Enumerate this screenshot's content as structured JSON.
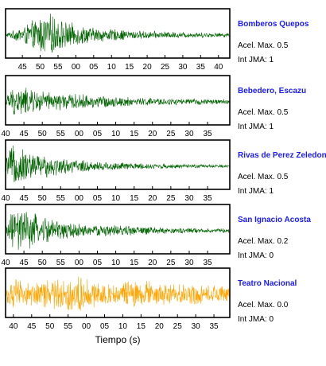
{
  "chart_data": [
    {
      "type": "line",
      "station": "Bomberos Quepos",
      "acel_text": "Acel. Max. 0.5",
      "jma_text": "Int JMA: 1",
      "acel_max": 0.5,
      "int_jma": 1,
      "color": "#006400",
      "amplitude_scale": 1.0,
      "x_tick_labels": [
        "45",
        "50",
        "55",
        "00",
        "05",
        "10",
        "15",
        "20",
        "25",
        "30",
        "35",
        "40"
      ],
      "first_tick_offset": 0.075,
      "tick_step": 0.0795,
      "onset_fraction": 0.03,
      "peak_fraction": 0.2,
      "decay": 0.25,
      "amplitude_series": [
        {
          "t": 0.0,
          "a": 0.08
        },
        {
          "t": 0.03,
          "a": 0.2
        },
        {
          "t": 0.1,
          "a": 0.55
        },
        {
          "t": 0.16,
          "a": 0.95
        },
        {
          "t": 0.2,
          "a": 1.0
        },
        {
          "t": 0.28,
          "a": 0.6
        },
        {
          "t": 0.4,
          "a": 0.35
        },
        {
          "t": 0.6,
          "a": 0.2
        },
        {
          "t": 0.8,
          "a": 0.14
        },
        {
          "t": 1.0,
          "a": 0.1
        }
      ]
    },
    {
      "type": "line",
      "station": "Bebedero, Escazu",
      "acel_text": "Acel. Max. 0.5",
      "jma_text": "Int JMA: 1",
      "acel_max": 0.5,
      "int_jma": 1,
      "color": "#006400",
      "amplitude_scale": 1.0,
      "x_tick_labels": [
        "40",
        "45",
        "50",
        "55",
        "00",
        "05",
        "10",
        "15",
        "20",
        "25",
        "30",
        "35"
      ],
      "first_tick_offset": 0.0,
      "tick_step": 0.0819,
      "amplitude_series": [
        {
          "t": 0.0,
          "a": 0.15
        },
        {
          "t": 0.02,
          "a": 0.6
        },
        {
          "t": 0.06,
          "a": 0.75
        },
        {
          "t": 0.12,
          "a": 0.6
        },
        {
          "t": 0.2,
          "a": 0.45
        },
        {
          "t": 0.35,
          "a": 0.35
        },
        {
          "t": 0.55,
          "a": 0.22
        },
        {
          "t": 0.8,
          "a": 0.15
        },
        {
          "t": 1.0,
          "a": 0.12
        }
      ]
    },
    {
      "type": "line",
      "station": "Rivas de Perez Zeledon",
      "acel_text": "Acel. Max. 0.5",
      "jma_text": "Int JMA: 1",
      "acel_max": 0.5,
      "int_jma": 1,
      "color": "#006400",
      "amplitude_scale": 1.0,
      "x_tick_labels": [
        "40",
        "45",
        "50",
        "55",
        "00",
        "05",
        "10",
        "15",
        "20",
        "25",
        "30",
        "35"
      ],
      "first_tick_offset": 0.0,
      "tick_step": 0.0819,
      "amplitude_series": [
        {
          "t": 0.0,
          "a": 0.3
        },
        {
          "t": 0.02,
          "a": 1.0
        },
        {
          "t": 0.08,
          "a": 0.85
        },
        {
          "t": 0.15,
          "a": 0.6
        },
        {
          "t": 0.25,
          "a": 0.4
        },
        {
          "t": 0.4,
          "a": 0.25
        },
        {
          "t": 0.6,
          "a": 0.15
        },
        {
          "t": 0.8,
          "a": 0.1
        },
        {
          "t": 1.0,
          "a": 0.07
        }
      ]
    },
    {
      "type": "line",
      "station": "San Ignacio Acosta",
      "acel_text": "Acel. Max. 0.2",
      "jma_text": "Int JMA: 0",
      "acel_max": 0.2,
      "int_jma": 0,
      "color": "#006400",
      "amplitude_scale": 1.0,
      "x_tick_labels": [
        "40",
        "45",
        "50",
        "55",
        "00",
        "05",
        "10",
        "15",
        "20",
        "25",
        "30",
        "35"
      ],
      "first_tick_offset": 0.0,
      "tick_step": 0.0819,
      "amplitude_series": [
        {
          "t": 0.0,
          "a": 0.35
        },
        {
          "t": 0.03,
          "a": 0.95
        },
        {
          "t": 0.08,
          "a": 1.0
        },
        {
          "t": 0.14,
          "a": 0.8
        },
        {
          "t": 0.22,
          "a": 0.55
        },
        {
          "t": 0.35,
          "a": 0.3
        },
        {
          "t": 0.55,
          "a": 0.25
        },
        {
          "t": 0.7,
          "a": 0.15
        },
        {
          "t": 1.0,
          "a": 0.1
        }
      ]
    },
    {
      "type": "line",
      "station": "Teatro Nacional",
      "acel_text": "Acel. Max. 0.0",
      "jma_text": "Int JMA: 0",
      "acel_max": 0.0,
      "int_jma": 0,
      "color": "#ffa500",
      "amplitude_scale": 1.0,
      "x_tick_labels": [
        "40",
        "45",
        "50",
        "55",
        "00",
        "05",
        "10",
        "15",
        "20",
        "25",
        "30",
        "35"
      ],
      "first_tick_offset": 0.035,
      "tick_step": 0.0813,
      "xlabel": "Tiempo (s)",
      "amplitude_series": [
        {
          "t": 0.0,
          "a": 0.45
        },
        {
          "t": 0.05,
          "a": 0.75
        },
        {
          "t": 0.1,
          "a": 0.6
        },
        {
          "t": 0.2,
          "a": 0.7
        },
        {
          "t": 0.3,
          "a": 1.0
        },
        {
          "t": 0.4,
          "a": 0.6
        },
        {
          "t": 0.5,
          "a": 0.5
        },
        {
          "t": 0.55,
          "a": 0.75
        },
        {
          "t": 0.7,
          "a": 0.55
        },
        {
          "t": 0.85,
          "a": 0.5
        },
        {
          "t": 1.0,
          "a": 0.4
        }
      ]
    }
  ]
}
